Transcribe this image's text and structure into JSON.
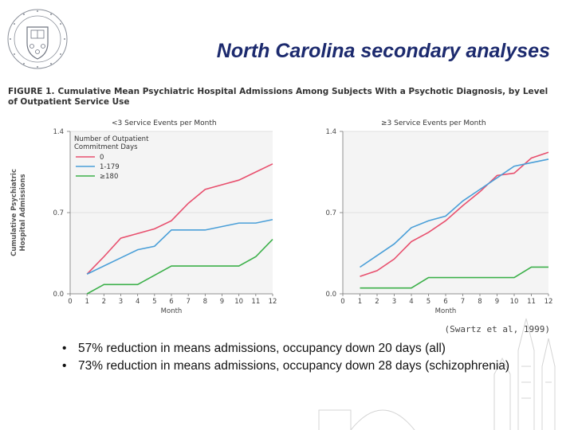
{
  "slide": {
    "title": "North Carolina secondary analyses",
    "figure_label": "FIGURE 1.",
    "figure_caption": "Cumulative Mean Psychiatric Hospital Admissions Among Subjects With a Psychotic Diagnosis, by Level of Outpatient Service Use",
    "citation": "(Swartz et al, 1999)",
    "bullets": [
      "57% reduction in means admissions, occupancy down 20 days (all)",
      "73% reduction in means admissions, occupancy down 28 days (schizophrenia)"
    ],
    "logo_icon": "university-crest-icon"
  },
  "chart_data": [
    {
      "type": "line",
      "title": "<3 Service Events per Month",
      "xlabel": "Month",
      "ylabel": "Cumulative Psychiatric Hospital Admissions",
      "x": [
        1,
        2,
        3,
        4,
        5,
        6,
        7,
        8,
        9,
        10,
        11,
        12
      ],
      "xticks": [
        "0",
        "1",
        "2",
        "3",
        "4",
        "5",
        "6",
        "7",
        "8",
        "9",
        "10",
        "11",
        "12"
      ],
      "yticks": [
        "0.0",
        "0.7",
        "1.4"
      ],
      "xlim": [
        0,
        12
      ],
      "ylim": [
        0,
        1.4
      ],
      "legend_title": "Number of Outpatient Commitment Days",
      "legend_placement": "top-left",
      "series": [
        {
          "name": "0",
          "color": "#e8506e",
          "values": [
            0.17,
            0.32,
            0.48,
            0.52,
            0.56,
            0.63,
            0.78,
            0.9,
            0.94,
            0.98,
            1.05,
            1.12
          ]
        },
        {
          "name": "1-179",
          "color": "#4a9fd8",
          "values": [
            0.17,
            0.24,
            0.31,
            0.38,
            0.41,
            0.55,
            0.55,
            0.55,
            0.58,
            0.61,
            0.61,
            0.64
          ]
        },
        {
          "name": "≥180",
          "color": "#3cb04a",
          "values": [
            0.0,
            0.08,
            0.08,
            0.08,
            0.16,
            0.24,
            0.24,
            0.24,
            0.24,
            0.24,
            0.32,
            0.47
          ]
        }
      ]
    },
    {
      "type": "line",
      "title": "≥3 Service Events per Month",
      "xlabel": "Month",
      "ylabel": "",
      "x": [
        1,
        2,
        3,
        4,
        5,
        6,
        7,
        8,
        9,
        10,
        11,
        12
      ],
      "xticks": [
        "0",
        "1",
        "2",
        "3",
        "4",
        "5",
        "6",
        "7",
        "8",
        "9",
        "10",
        "11",
        "12"
      ],
      "yticks": [
        "0.0",
        "0.7",
        "1.4"
      ],
      "xlim": [
        0,
        12
      ],
      "ylim": [
        0,
        1.4
      ],
      "series": [
        {
          "name": "0",
          "color": "#e8506e",
          "values": [
            0.15,
            0.2,
            0.3,
            0.45,
            0.53,
            0.63,
            0.76,
            0.88,
            1.02,
            1.04,
            1.17,
            1.22
          ]
        },
        {
          "name": "1-179",
          "color": "#4a9fd8",
          "values": [
            0.23,
            0.33,
            0.43,
            0.57,
            0.63,
            0.67,
            0.8,
            0.9,
            1.0,
            1.1,
            1.13,
            1.16
          ]
        },
        {
          "name": "≥180",
          "color": "#3cb04a",
          "values": [
            0.05,
            0.05,
            0.05,
            0.05,
            0.14,
            0.14,
            0.14,
            0.14,
            0.14,
            0.14,
            0.23,
            0.23
          ]
        }
      ]
    }
  ]
}
